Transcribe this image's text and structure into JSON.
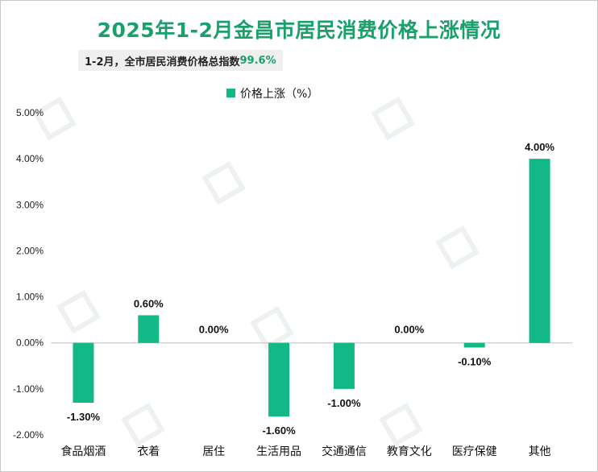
{
  "title": "2025年1-2月金昌市居民消费价格上涨情况",
  "subtitle": {
    "label": "1-2月，全市居民消费价格总指数",
    "value": "99.6%"
  },
  "colors": {
    "bar": "#12b886",
    "title": "#1aa06b",
    "axis": "#bfbfbf"
  },
  "chart_data": {
    "type": "bar",
    "title": "2025年1-2月金昌市居民消费价格上涨情况",
    "categories": [
      "食品烟酒",
      "衣着",
      "居住",
      "生活用品",
      "交通通信",
      "教育文化",
      "医疗保健",
      "其他"
    ],
    "series": [
      {
        "name": "价格上涨（%）",
        "values": [
          -1.3,
          0.6,
          0.0,
          -1.6,
          -1.0,
          0.0,
          -0.1,
          4.0
        ]
      }
    ],
    "data_labels": [
      "-1.30%",
      "0.60%",
      "0.00%",
      "-1.60%",
      "-1.00%",
      "0.00%",
      "-0.10%",
      "4.00%"
    ],
    "yticks": [
      {
        "value": 5,
        "label": "5.00%"
      },
      {
        "value": 4,
        "label": "4.00%"
      },
      {
        "value": 3,
        "label": "3.00%"
      },
      {
        "value": 2,
        "label": "2.00%"
      },
      {
        "value": 1,
        "label": "1.00%"
      },
      {
        "value": 0,
        "label": "0.00%"
      },
      {
        "value": -1,
        "label": "-1.00%"
      },
      {
        "value": -2,
        "label": "-2.00%"
      }
    ],
    "ylim": [
      -2,
      5
    ],
    "legend": "top-center",
    "grid": false
  }
}
